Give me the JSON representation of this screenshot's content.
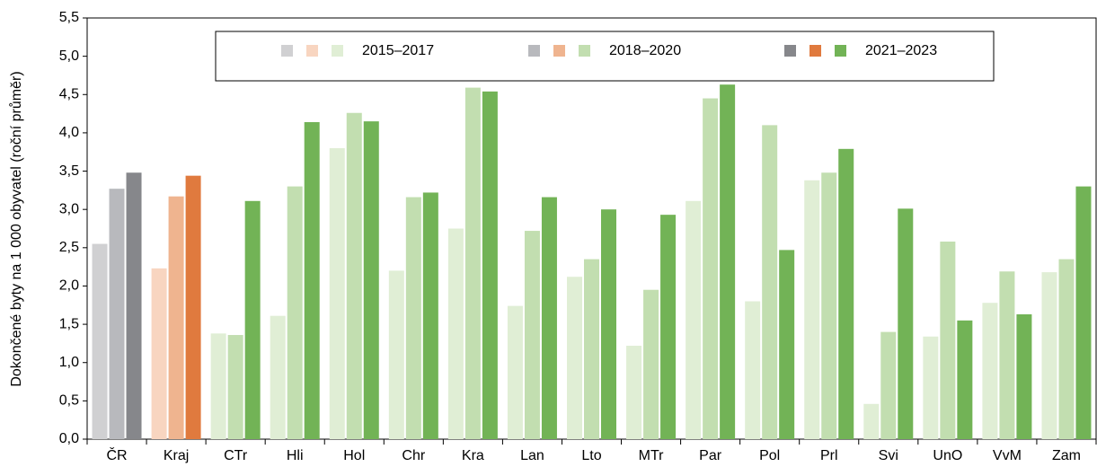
{
  "chart_data": {
    "type": "bar",
    "y_label": "Dokončené byty na 1 000 obyvatel (roční průměr)",
    "categories": [
      "ČR",
      "Kraj",
      "CTr",
      "Hli",
      "Hol",
      "Chr",
      "Kra",
      "Lan",
      "Lto",
      "MTr",
      "Par",
      "Pol",
      "Prl",
      "Svi",
      "UnO",
      "VvM",
      "Zam"
    ],
    "series": [
      {
        "name": "2015–2017",
        "colors": [
          "#d0d0d2",
          "#f8d5c0",
          "#e0eed5",
          "#e0eed5",
          "#e0eed5",
          "#e0eed5",
          "#e0eed5",
          "#e0eed5",
          "#e0eed5",
          "#e0eed5",
          "#e0eed5",
          "#e0eed5",
          "#e0eed5",
          "#e0eed5",
          "#e0eed5",
          "#e0eed5",
          "#e0eed5"
        ],
        "values": [
          2.55,
          2.23,
          1.38,
          1.61,
          3.8,
          2.2,
          2.75,
          1.74,
          2.12,
          1.22,
          3.11,
          1.8,
          3.38,
          0.46,
          1.34,
          1.78,
          2.18
        ]
      },
      {
        "name": "2018–2020",
        "colors": [
          "#b8b9bd",
          "#efb48f",
          "#c2deb0",
          "#c2deb0",
          "#c2deb0",
          "#c2deb0",
          "#c2deb0",
          "#c2deb0",
          "#c2deb0",
          "#c2deb0",
          "#c2deb0",
          "#c2deb0",
          "#c2deb0",
          "#c2deb0",
          "#c2deb0",
          "#c2deb0",
          "#c2deb0"
        ],
        "values": [
          3.27,
          3.17,
          1.36,
          3.3,
          4.26,
          3.16,
          4.59,
          2.72,
          2.35,
          1.95,
          4.45,
          4.1,
          3.48,
          1.4,
          2.58,
          2.19,
          2.35
        ]
      },
      {
        "name": "2021–2023",
        "colors": [
          "#86878b",
          "#e07a3e",
          "#72b356",
          "#72b356",
          "#72b356",
          "#72b356",
          "#72b356",
          "#72b356",
          "#72b356",
          "#72b356",
          "#72b356",
          "#72b356",
          "#72b356",
          "#72b356",
          "#72b356",
          "#72b356",
          "#72b356"
        ],
        "values": [
          3.48,
          3.44,
          3.11,
          4.14,
          4.15,
          3.22,
          4.54,
          3.16,
          3.0,
          2.93,
          4.63,
          2.47,
          3.79,
          3.01,
          1.55,
          1.63,
          3.3
        ]
      }
    ],
    "ylim": [
      0,
      5.5
    ],
    "yticks": [
      {
        "value": 0,
        "label": "0,0"
      },
      {
        "value": 0.5,
        "label": "0,5"
      },
      {
        "value": 1,
        "label": "1,0"
      },
      {
        "value": 1.5,
        "label": "1,5"
      },
      {
        "value": 2,
        "label": "2,0"
      },
      {
        "value": 2.5,
        "label": "2,5"
      },
      {
        "value": 3,
        "label": "3,0"
      },
      {
        "value": 3.5,
        "label": "3,5"
      },
      {
        "value": 4,
        "label": "4,0"
      },
      {
        "value": 4.5,
        "label": "4,5"
      },
      {
        "value": 5,
        "label": "5,0"
      },
      {
        "value": 5.5,
        "label": "5,5"
      }
    ],
    "grid": false
  }
}
